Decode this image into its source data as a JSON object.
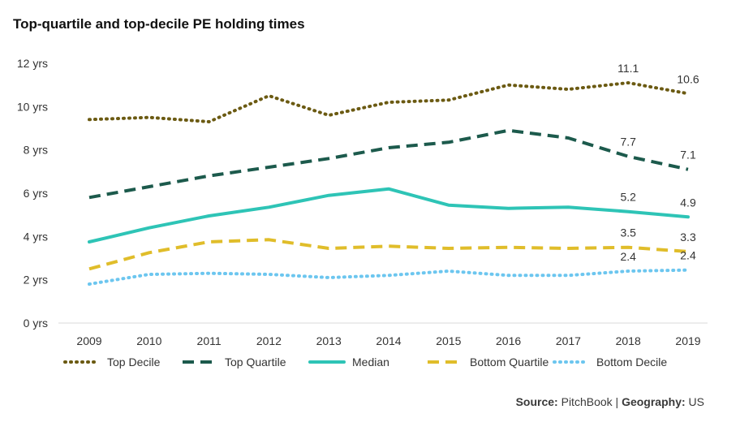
{
  "chart_data": {
    "type": "line",
    "title": "Top-quartile and top-decile PE holding times",
    "xlabel": "",
    "ylabel": "",
    "categories": [
      "2009",
      "2010",
      "2011",
      "2012",
      "2013",
      "2014",
      "2015",
      "2016",
      "2017",
      "2018",
      "2019"
    ],
    "ylim": [
      0,
      12
    ],
    "yticks": [
      0,
      2,
      4,
      6,
      8,
      10,
      12
    ],
    "ytick_labels": [
      "0 yrs",
      "2 yrs",
      "4 yrs",
      "6 yrs",
      "8 yrs",
      "10 yrs",
      "12 yrs"
    ],
    "grid": false,
    "legend_position": "bottom",
    "series": [
      {
        "name": "Top Decile",
        "color": "#6b5a12",
        "style": "dotted",
        "values": [
          9.4,
          9.5,
          9.3,
          10.5,
          9.6,
          10.2,
          10.3,
          11.0,
          10.8,
          11.1,
          10.6
        ],
        "labels": {
          "9": "11.1",
          "10": "10.6"
        }
      },
      {
        "name": "Top Quartile",
        "color": "#1c5a4c",
        "style": "dashed",
        "values": [
          5.8,
          6.3,
          6.8,
          7.2,
          7.6,
          8.1,
          8.35,
          8.9,
          8.55,
          7.7,
          7.1
        ],
        "labels": {
          "9": "7.7",
          "10": "7.1"
        }
      },
      {
        "name": "Median",
        "color": "#2ec4b6",
        "style": "solid",
        "values": [
          3.75,
          4.4,
          4.95,
          5.35,
          5.9,
          6.2,
          5.45,
          5.3,
          5.35,
          5.15,
          4.9
        ],
        "labels": {
          "9": "5.2",
          "10": "4.9"
        }
      },
      {
        "name": "Bottom Quartile",
        "color": "#e0bd2a",
        "style": "dashed",
        "values": [
          2.5,
          3.25,
          3.75,
          3.85,
          3.45,
          3.55,
          3.45,
          3.5,
          3.45,
          3.5,
          3.3
        ],
        "labels": {
          "9": "3.5",
          "10": "3.3"
        }
      },
      {
        "name": "Bottom Decile",
        "color": "#6cc6ef",
        "style": "dotted",
        "values": [
          1.8,
          2.25,
          2.3,
          2.25,
          2.1,
          2.2,
          2.4,
          2.2,
          2.2,
          2.4,
          2.45
        ],
        "labels": {
          "9": "2.4",
          "10": "2.4"
        }
      }
    ]
  },
  "source": {
    "label": "Source:",
    "value": "PitchBook",
    "separator": "|",
    "geo_label": "Geography:",
    "geo_value": "US"
  }
}
